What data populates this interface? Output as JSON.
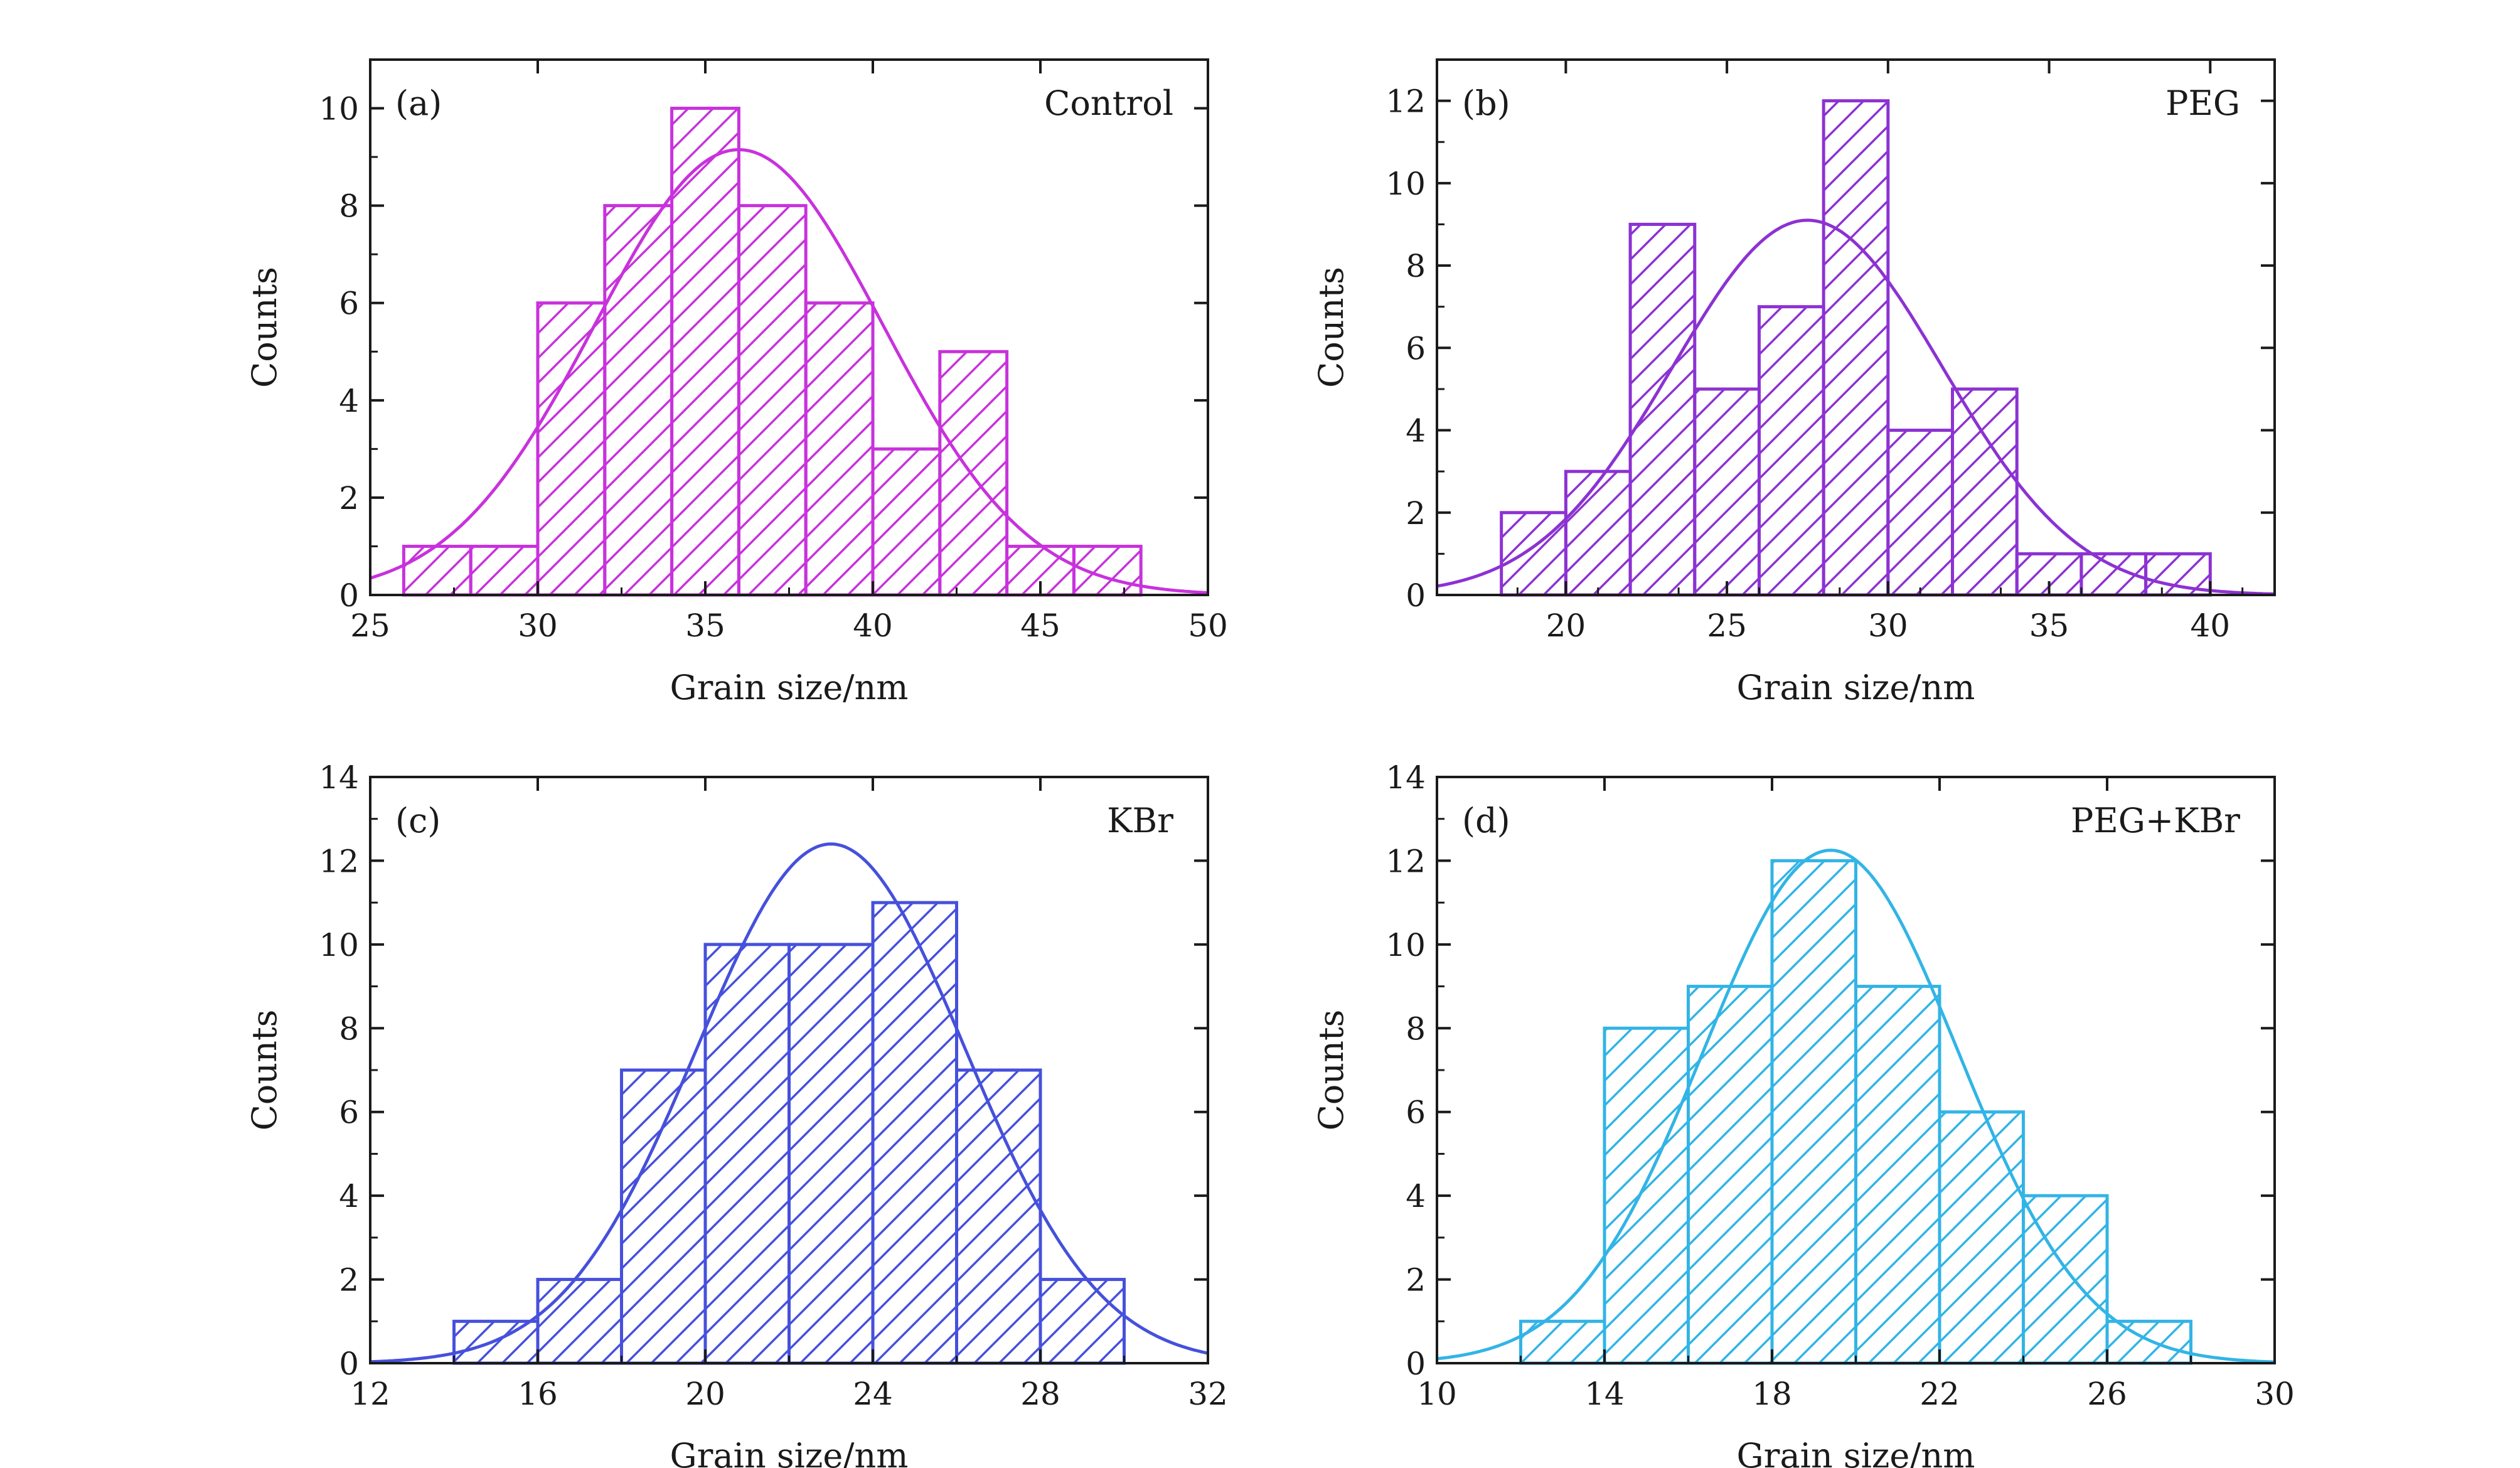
{
  "chart_data": [
    {
      "type": "bar",
      "panel_label": "(a)",
      "title": "Control",
      "xlabel": "Grain size/nm",
      "ylabel": "Counts",
      "xlim": [
        25,
        50
      ],
      "ylim": [
        0,
        11
      ],
      "xticks": [
        25,
        30,
        35,
        40,
        45,
        50
      ],
      "yticks": [
        0,
        2,
        4,
        6,
        8,
        10
      ],
      "bin_edges": [
        26,
        28,
        30,
        32,
        34,
        36,
        38,
        40,
        42,
        44,
        46,
        48
      ],
      "values": [
        1,
        1,
        6,
        8,
        10,
        8,
        6,
        3,
        5,
        1,
        1
      ],
      "fit": {
        "type": "gaussian",
        "peak": 9.15,
        "mean": 36.0,
        "sigma": 4.3
      },
      "color": "#c832dc",
      "grid": false
    },
    {
      "type": "bar",
      "panel_label": "(b)",
      "title": "PEG",
      "xlabel": "Grain size/nm",
      "ylabel": "Counts",
      "xlim": [
        16,
        42
      ],
      "ylim": [
        0,
        13
      ],
      "xticks": [
        20,
        25,
        30,
        35,
        40
      ],
      "yticks": [
        0,
        2,
        4,
        6,
        8,
        10,
        12
      ],
      "bin_edges": [
        18,
        20,
        22,
        24,
        26,
        28,
        30,
        32,
        34,
        36,
        38,
        40
      ],
      "values": [
        2,
        3,
        9,
        5,
        7,
        12,
        4,
        5,
        1,
        1,
        1
      ],
      "fit": {
        "type": "gaussian",
        "peak": 9.1,
        "mean": 27.5,
        "sigma": 4.2
      },
      "color": "#8c32d2",
      "grid": false
    },
    {
      "type": "bar",
      "panel_label": "(c)",
      "title": "KBr",
      "xlabel": "Grain size/nm",
      "ylabel": "Counts",
      "xlim": [
        12,
        32
      ],
      "ylim": [
        0,
        14
      ],
      "xticks": [
        12,
        16,
        20,
        24,
        28,
        32
      ],
      "yticks": [
        0,
        2,
        4,
        6,
        8,
        10,
        12,
        14
      ],
      "bin_edges": [
        14,
        16,
        18,
        20,
        22,
        24,
        26,
        28,
        30
      ],
      "values": [
        1,
        2,
        7,
        10,
        10,
        11,
        7,
        2
      ],
      "fit": {
        "type": "gaussian",
        "peak": 12.4,
        "mean": 23.0,
        "sigma": 3.2
      },
      "color": "#4650dc",
      "grid": false
    },
    {
      "type": "bar",
      "panel_label": "(d)",
      "title": "PEG+KBr",
      "xlabel": "Grain size/nm",
      "ylabel": "Counts",
      "xlim": [
        10,
        30
      ],
      "ylim": [
        0,
        14
      ],
      "xticks": [
        10,
        14,
        18,
        22,
        26,
        30
      ],
      "yticks": [
        0,
        2,
        4,
        6,
        8,
        10,
        12,
        14
      ],
      "bin_edges": [
        12,
        14,
        16,
        18,
        20,
        22,
        24,
        26,
        28
      ],
      "values": [
        1,
        8,
        9,
        12,
        9,
        6,
        4,
        1
      ],
      "fit": {
        "type": "gaussian",
        "peak": 12.25,
        "mean": 19.4,
        "sigma": 3.05
      },
      "color": "#32b4e6",
      "grid": false
    }
  ]
}
